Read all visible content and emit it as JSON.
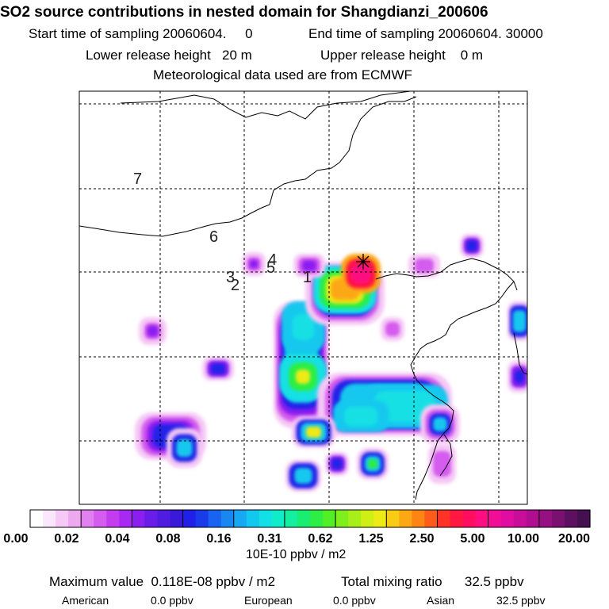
{
  "header": {
    "title": "SO2 source contributions in nested domain for Shangdianzi_200606",
    "start_time": "Start time of sampling 20060604.     0",
    "end_time": "End time of sampling 20060604. 30000",
    "lower_height": "Lower release height   20 m",
    "upper_height": "Upper release height    0 m",
    "met_data": "Meteorological data used are from ECMWF"
  },
  "chart_data": {
    "type": "heatmap",
    "title": "SO2 source contributions in nested domain for Shangdianzi_200606",
    "colorbar": {
      "tick_labels": [
        "0.00",
        "0.02",
        "0.04",
        "0.08",
        "0.16",
        "0.31",
        "0.62",
        "1.25",
        "2.50",
        "5.00",
        "10.00",
        "20.00"
      ],
      "units": "10E-10 ppbv / m2",
      "colors": [
        "#ffffff",
        "#fbe7fb",
        "#f5c8f5",
        "#eda8f0",
        "#e180ee",
        "#d45cee",
        "#c33cf0",
        "#a82af2",
        "#8a1ff0",
        "#6a1ce8",
        "#4f1ce0",
        "#3a1ad8",
        "#2020e8",
        "#1a3ce8",
        "#1a62f0",
        "#1a86f2",
        "#16a8f2",
        "#12c8ee",
        "#12e0e4",
        "#10ecc8",
        "#14ee9e",
        "#1aee72",
        "#2cee44",
        "#52ee26",
        "#7eee1c",
        "#a8ee18",
        "#d0ee16",
        "#eeea16",
        "#f8cc14",
        "#fca812",
        "#fe8414",
        "#ff5c1c",
        "#ff3228",
        "#ff1840",
        "#ff0e60",
        "#fe0e80",
        "#f00e96",
        "#e00ea0",
        "#c80e98",
        "#b00e90",
        "#961082",
        "#7a1070",
        "#5e1060",
        "#441050"
      ]
    },
    "site_labels": [
      "1",
      "2",
      "3",
      "4",
      "5",
      "6",
      "7"
    ],
    "max_value": "Maximum value  0.118E-08 ppbv / m2",
    "total_mixing_ratio": "Total mixing ratio      32.5 ppbv",
    "regional": [
      {
        "region": "American",
        "value": "0.0 ppbv"
      },
      {
        "region": "European",
        "value": "0.0 ppbv"
      },
      {
        "region": "Asian",
        "value": "32.5 ppbv"
      }
    ]
  }
}
